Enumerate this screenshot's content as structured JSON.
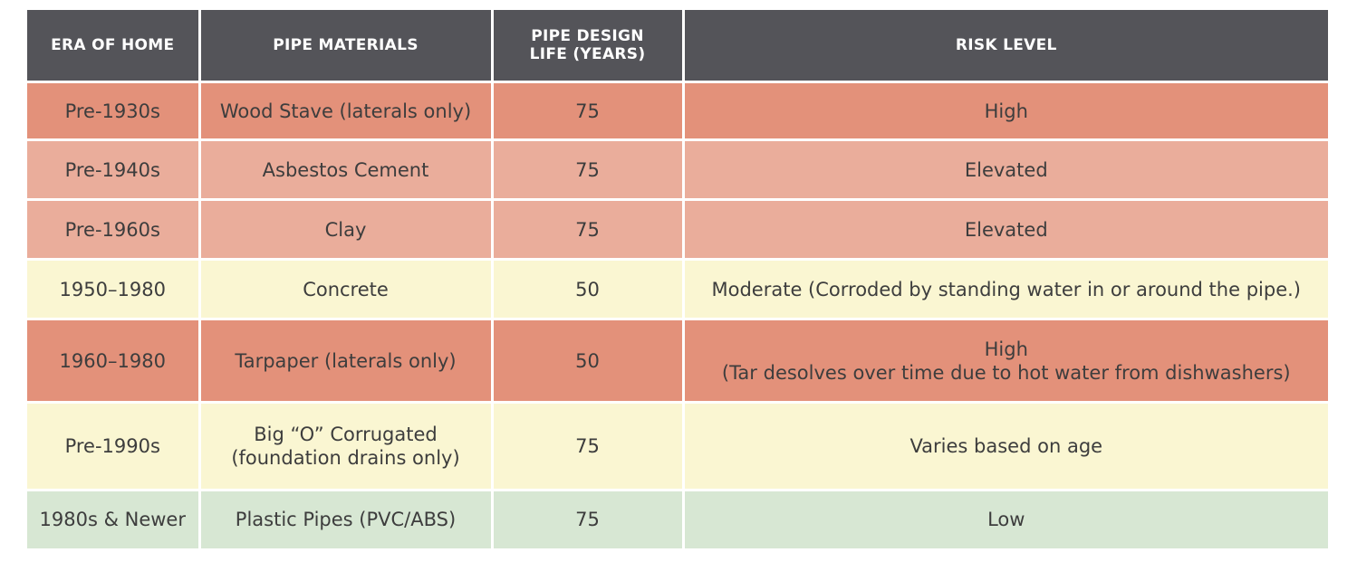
{
  "colors": {
    "header_bg": "#545459",
    "high": "#e3917a",
    "elevated": "#eaad9b",
    "moderate": "#faf6d2",
    "low": "#d7e7d3"
  },
  "table": {
    "headers": [
      "ERA OF HOME",
      "PIPE MATERIALS",
      "PIPE DESIGN LIFE (YEARS)",
      "RISK LEVEL"
    ],
    "rows": [
      {
        "era": "Pre-1930s",
        "material": "Wood Stave (laterals only)",
        "life": "75",
        "risk": "High",
        "risk_note": "",
        "level": "high"
      },
      {
        "era": "Pre-1940s",
        "material": "Asbestos Cement",
        "life": "75",
        "risk": "Elevated",
        "risk_note": "",
        "level": "elevated"
      },
      {
        "era": "Pre-1960s",
        "material": "Clay",
        "life": "75",
        "risk": "Elevated",
        "risk_note": "",
        "level": "elevated"
      },
      {
        "era": "1950–1980",
        "material": "Concrete",
        "life": "50",
        "risk": "Moderate (Corroded by standing water in or around the pipe.)",
        "risk_note": "",
        "level": "moderate"
      },
      {
        "era": "1960–1980",
        "material": "Tarpaper (laterals only)",
        "life": "50",
        "risk": "High",
        "risk_note": "(Tar desolves over time due to hot water from dishwashers)",
        "level": "high"
      },
      {
        "era": "Pre-1990s",
        "material": "Big “O” Corrugated",
        "material_note": "(foundation drains only)",
        "life": "75",
        "risk": "Varies based on age",
        "risk_note": "",
        "level": "moderate"
      },
      {
        "era": "1980s & Newer",
        "material": "Plastic Pipes (PVC/ABS)",
        "life": "75",
        "risk": "Low",
        "risk_note": "",
        "level": "low"
      }
    ]
  }
}
